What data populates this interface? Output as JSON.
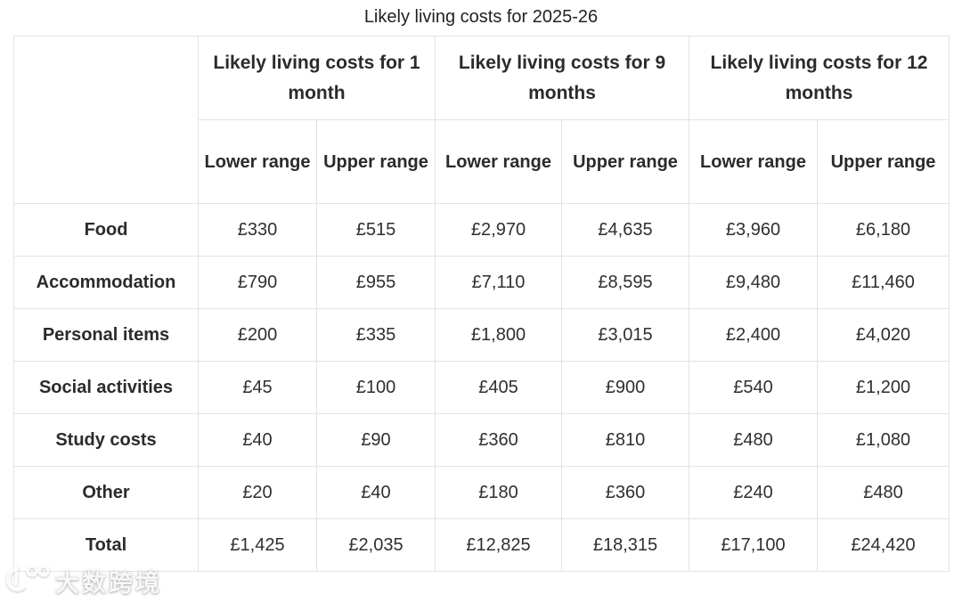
{
  "title": "Likely living costs for 2025-26",
  "table": {
    "groups": [
      {
        "label": "Likely living costs for 1 month"
      },
      {
        "label": "Likely living costs for 9 months"
      },
      {
        "label": "Likely living costs for 12 months"
      }
    ],
    "subheaders": [
      "Lower range",
      "Upper range",
      "Lower range",
      "Upper range",
      "Lower range",
      "Upper range"
    ],
    "rows": [
      {
        "label": "Food",
        "values": [
          "£330",
          "£515",
          "£2,970",
          "£4,635",
          "£3,960",
          "£6,180"
        ]
      },
      {
        "label": "Accommodation",
        "values": [
          "£790",
          "£955",
          "£7,110",
          "£8,595",
          "£9,480",
          "£11,460"
        ]
      },
      {
        "label": "Personal items",
        "values": [
          "£200",
          "£335",
          "£1,800",
          "£3,015",
          "£2,400",
          "£4,020"
        ]
      },
      {
        "label": "Social activities",
        "values": [
          "£45",
          "£100",
          "£405",
          "£900",
          "£540",
          "£1,200"
        ]
      },
      {
        "label": "Study costs",
        "values": [
          "£40",
          "£90",
          "£360",
          "£810",
          "£480",
          "£1,080"
        ]
      },
      {
        "label": "Other",
        "values": [
          "£20",
          "£40",
          "£180",
          "£360",
          "£240",
          "£480"
        ]
      },
      {
        "label": "Total",
        "values": [
          "£1,425",
          "£2,035",
          "£12,825",
          "£18,315",
          "£17,100",
          "£24,420"
        ]
      }
    ]
  },
  "watermark": {
    "logo_icon": "spectacles-curl-logo-icon",
    "text": "大数跨境"
  },
  "chart_data": {
    "type": "table",
    "title": "Likely living costs for 2025-26",
    "currency": "GBP",
    "column_groups": [
      "Likely living costs for 1 month",
      "Likely living costs for 9 months",
      "Likely living costs for 12 months"
    ],
    "columns": [
      "1 month lower range",
      "1 month upper range",
      "9 months lower range",
      "9 months upper range",
      "12 months lower range",
      "12 months upper range"
    ],
    "row_labels": [
      "Food",
      "Accommodation",
      "Personal items",
      "Social activities",
      "Study costs",
      "Other",
      "Total"
    ],
    "values": [
      [
        330,
        515,
        2970,
        4635,
        3960,
        6180
      ],
      [
        790,
        955,
        7110,
        8595,
        9480,
        11460
      ],
      [
        200,
        335,
        1800,
        3015,
        2400,
        4020
      ],
      [
        45,
        100,
        405,
        900,
        540,
        1200
      ],
      [
        40,
        90,
        360,
        810,
        480,
        1080
      ],
      [
        20,
        40,
        180,
        360,
        240,
        480
      ],
      [
        1425,
        2035,
        12825,
        18315,
        17100,
        24420
      ]
    ]
  }
}
